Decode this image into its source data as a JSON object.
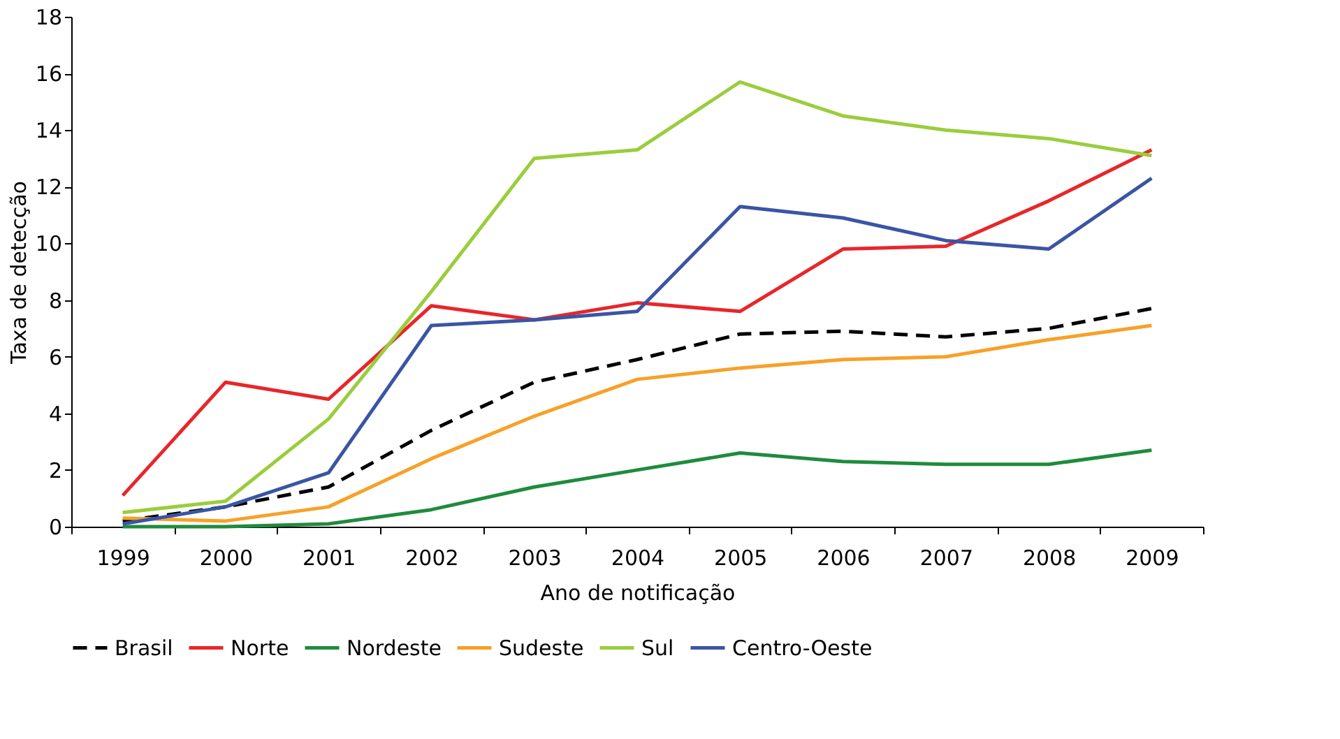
{
  "chart_data": {
    "type": "line",
    "xlabel": "Ano de notificação",
    "ylabel": "Taxa de detecção",
    "categories": [
      "1999",
      "2000",
      "2001",
      "2002",
      "2003",
      "2004",
      "2005",
      "2006",
      "2007",
      "2008",
      "2009"
    ],
    "ylim": [
      0,
      18
    ],
    "yticks": [
      0,
      2,
      4,
      6,
      8,
      10,
      12,
      14,
      16,
      18
    ],
    "grid": false,
    "legend": "bottom",
    "marker": "none",
    "series": [
      {
        "name": "Brasil",
        "color": "#000000",
        "line_style": "dashed",
        "values": [
          0.2,
          0.7,
          1.4,
          3.4,
          5.1,
          5.9,
          6.8,
          6.9,
          6.7,
          7.0,
          7.7
        ]
      },
      {
        "name": "Norte",
        "color": "#e8262a",
        "line_style": "solid",
        "values": [
          1.1,
          5.1,
          4.5,
          7.8,
          7.3,
          7.9,
          7.6,
          9.8,
          9.9,
          11.5,
          13.3
        ]
      },
      {
        "name": "Nordeste",
        "color": "#1e8c3c",
        "line_style": "solid",
        "values": [
          0.0,
          0.0,
          0.1,
          0.6,
          1.4,
          2.0,
          2.6,
          2.3,
          2.2,
          2.2,
          2.7
        ]
      },
      {
        "name": "Sudeste",
        "color": "#f7a128",
        "line_style": "solid",
        "values": [
          0.3,
          0.2,
          0.7,
          2.4,
          3.9,
          5.2,
          5.6,
          5.9,
          6.0,
          6.6,
          7.1
        ]
      },
      {
        "name": "Sul",
        "color": "#9acd3c",
        "line_style": "solid",
        "values": [
          0.5,
          0.9,
          3.8,
          8.3,
          13.0,
          13.3,
          15.7,
          14.5,
          14.0,
          13.7,
          13.1
        ]
      },
      {
        "name": "Centro-Oeste",
        "color": "#3a55a4",
        "line_style": "solid",
        "values": [
          0.1,
          0.7,
          1.9,
          7.1,
          7.3,
          7.6,
          11.3,
          10.9,
          10.1,
          9.8,
          12.3
        ]
      }
    ]
  }
}
